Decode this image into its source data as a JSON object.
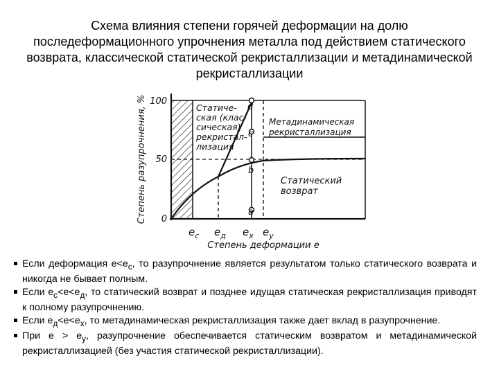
{
  "title": "Схема влияния степени горячей деформации на долю последеформационного упрочнения металла под действием статического возврата, классической статической рекристаллизации и метадинамической рекристаллизации",
  "figure": {
    "y_axis_label": "Степень разупрочнения, %",
    "x_axis_label": "Степень деформации e",
    "y_ticks": [
      "0",
      "50",
      "100"
    ],
    "x_ticks": [
      [
        "e",
        "c"
      ],
      [
        "e",
        "д"
      ],
      [
        "e",
        "x"
      ],
      [
        "e",
        "y"
      ]
    ],
    "points": [
      "a",
      "b",
      "c",
      "d"
    ],
    "regions": [
      [
        "Статиче-",
        "ская (клас-",
        "сическая)",
        "рекристал-",
        "лизация"
      ],
      [
        "Метадинамическая",
        "рекристаллизация"
      ],
      [
        "Статический",
        "возврат"
      ]
    ]
  },
  "bullets": [
    [
      "Если деформация e<e",
      "c",
      ", то разупрочнение является результатом только статического возврата и никогда не бывает полным."
    ],
    [
      "Если e",
      "c",
      "<e<e",
      "д",
      ", то статический возврат и позднее идущая статическая рекристаллизация приводят к полному разупрочнению."
    ],
    [
      "Если e",
      "д",
      "<e<e",
      "x",
      ", то метадинамическая рекристаллизация также дает вклад в разупрочнение."
    ],
    [
      "При e > e",
      "y",
      ", разупрочнение обеспечивается статическим возвратом и метадинамической рекристаллизацией (без участия статической рекристаллизации)."
    ]
  ]
}
